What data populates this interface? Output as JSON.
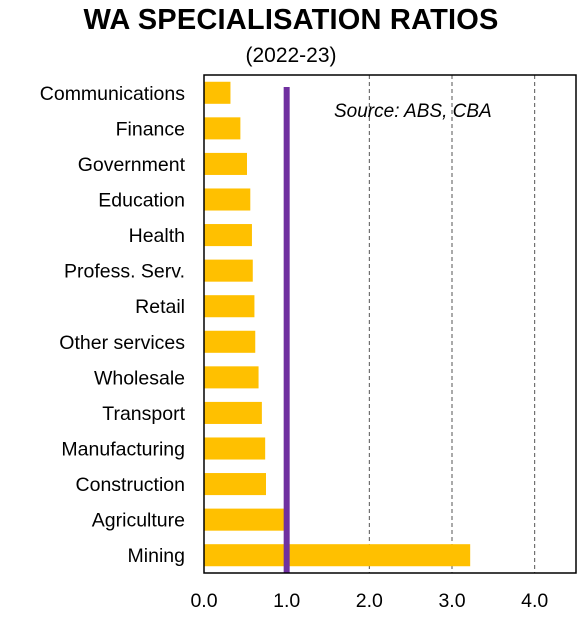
{
  "chart_data": {
    "type": "bar",
    "orientation": "horizontal",
    "title": "WA SPECIALISATION RATIOS",
    "subtitle": "(2022-23)",
    "annotation": "Source: ABS, CBA",
    "categories": [
      "Communications",
      "Finance",
      "Government",
      "Education",
      "Health",
      "Profess. Serv.",
      "Retail",
      "Other services",
      "Wholesale",
      "Transport",
      "Manufacturing",
      "Construction",
      "Agriculture",
      "Mining"
    ],
    "values": [
      0.32,
      0.44,
      0.52,
      0.56,
      0.58,
      0.59,
      0.61,
      0.62,
      0.66,
      0.7,
      0.74,
      0.75,
      0.97,
      3.22
    ],
    "xlim": [
      0,
      4.5
    ],
    "xticks": [
      0,
      1,
      2,
      3,
      4
    ],
    "xtick_labels": [
      "0.0",
      "1.0",
      "2.0",
      "3.0",
      "4.0"
    ],
    "reference_line": 1.0,
    "grid": "vertical dashed",
    "colors": {
      "bar": "#FFC000",
      "reference": "#7030A0",
      "grid": "#555555",
      "axis": "#000000"
    }
  }
}
